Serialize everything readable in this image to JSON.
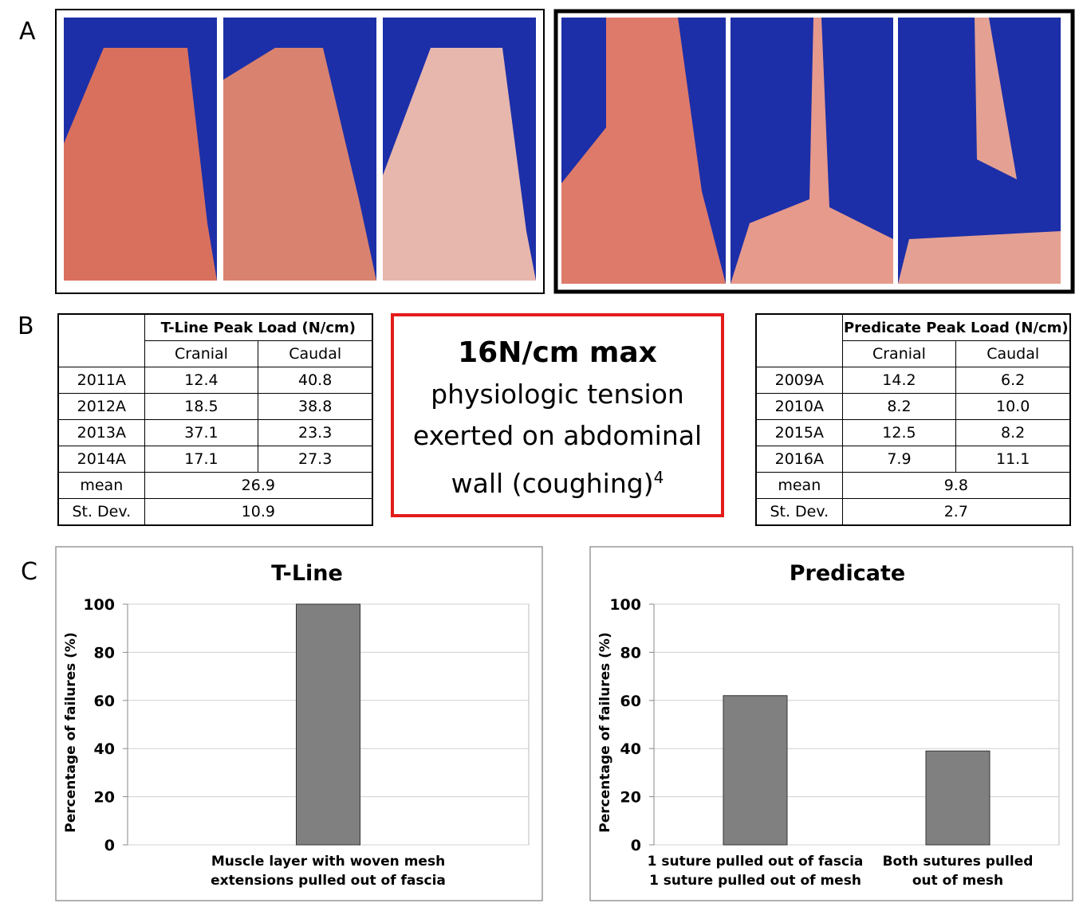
{
  "panels": [
    "A",
    "B",
    "C"
  ],
  "tables": [
    {
      "header": "T-Line Peak Load (N/cm)",
      "columns": [
        "Cranial",
        "Caudal"
      ],
      "rows": [
        [
          "2011A",
          "12.4",
          "40.8"
        ],
        [
          "2012A",
          "18.5",
          "38.8"
        ],
        [
          "2013A",
          "37.1",
          "23.3"
        ],
        [
          "2014A",
          "17.1",
          "27.3"
        ]
      ],
      "summary": [
        [
          "mean",
          "26.9"
        ],
        [
          "St. Dev.",
          "10.9"
        ]
      ]
    },
    {
      "header": "Predicate Peak Load (N/cm)",
      "columns": [
        "Cranial",
        "Caudal"
      ],
      "rows": [
        [
          "2009A",
          "14.2",
          "6.2"
        ],
        [
          "2010A",
          "8.2",
          "10.0"
        ],
        [
          "2015A",
          "12.5",
          "8.2"
        ],
        [
          "2016A",
          "7.9",
          "11.1"
        ]
      ],
      "summary": [
        [
          "mean",
          "9.8"
        ],
        [
          "St. Dev.",
          "2.7"
        ]
      ]
    }
  ],
  "callout": {
    "headline": "16N/cm  max",
    "lines": [
      "physiologic tension",
      "exerted on abdominal",
      "wall (coughing)"
    ],
    "superscript": "4"
  },
  "chart_data": [
    {
      "type": "bar",
      "title": "T-Line",
      "y_label": "Percentage of failures (%)",
      "categories": [
        "Muscle layer with woven mesh\nextensions pulled out of fascia"
      ],
      "values": [
        100
      ],
      "color": "#808080",
      "ylim": [
        0,
        100
      ],
      "yticks": [
        0,
        20,
        40,
        60,
        80,
        100
      ],
      "grid": true
    },
    {
      "type": "bar",
      "title": "Predicate",
      "y_label": "Percentage of failures (%)",
      "categories": [
        "1 suture pulled out of fascia\n1 suture pulled out of mesh",
        "Both sutures pulled\nout of mesh"
      ],
      "values": [
        62,
        39
      ],
      "color": "#808080",
      "ylim": [
        0,
        100
      ],
      "yticks": [
        0,
        20,
        40,
        60,
        80,
        100
      ],
      "grid": true
    }
  ]
}
